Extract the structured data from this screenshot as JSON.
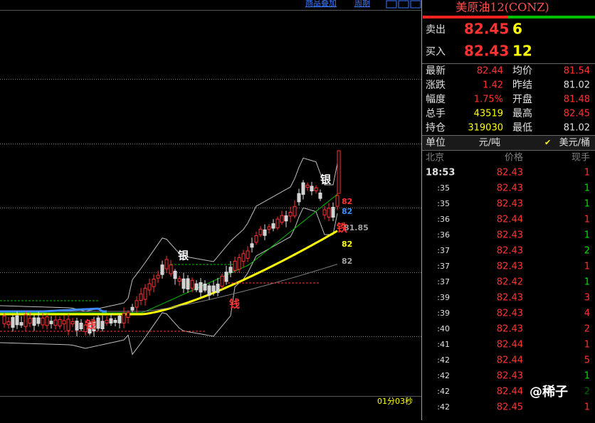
{
  "toolbar": [
    "商品叠加",
    "周期"
  ],
  "chart": {
    "price_labels": [
      {
        "text": "82",
        "color": "#ff3232"
      },
      {
        "text": "82",
        "color": "#3c8cff"
      },
      {
        "text": "81.85",
        "color": "#a0a0a0"
      },
      {
        "text": "82",
        "color": "#ffff00"
      },
      {
        "text": "82",
        "color": "#a0a0a0"
      }
    ],
    "markers": [
      {
        "text": "银",
        "color": "#ffffff"
      },
      {
        "text": "银",
        "color": "#ffffff"
      },
      {
        "text": "铁",
        "color": "#ff3232"
      },
      {
        "text": "钱",
        "color": "#ff3232"
      },
      {
        "text": "钱",
        "color": "#ff3232"
      }
    ],
    "timer": "01分03秒"
  },
  "quote": {
    "title": "美原油12(CONZ)",
    "ask": {
      "label": "卖出",
      "price": "82.45",
      "size": "6"
    },
    "bid": {
      "label": "买入",
      "price": "82.43",
      "size": "12"
    },
    "stats": [
      [
        {
          "t": "最新"
        },
        {
          "t": "82.44",
          "color": "#ff3232"
        },
        {
          "t": "均价"
        },
        {
          "t": "81.54",
          "color": "#ff3232"
        }
      ],
      [
        {
          "t": "涨跌"
        },
        {
          "t": "1.42",
          "color": "#ff3232"
        },
        {
          "t": "昨结"
        },
        {
          "t": "81.02",
          "color": "#e0e0e0"
        }
      ],
      [
        {
          "t": "幅度"
        },
        {
          "t": "1.75%",
          "color": "#ff3232"
        },
        {
          "t": "开盘"
        },
        {
          "t": "81.48",
          "color": "#ff3232"
        }
      ],
      [
        {
          "t": "总手"
        },
        {
          "t": "43519",
          "color": "#ffff00"
        },
        {
          "t": "最高"
        },
        {
          "t": "82.45",
          "color": "#ff3232"
        }
      ],
      [
        {
          "t": "持仓"
        },
        {
          "t": "319030",
          "color": "#ffff00"
        },
        {
          "t": "最低"
        },
        {
          "t": "81.02",
          "color": "#e0e0e0"
        }
      ]
    ],
    "unit": {
      "label": "单位",
      "a": "元/吨",
      "b": "美元/桶"
    },
    "ticks_header": [
      "北京",
      "价格",
      "现手"
    ],
    "ticks": [
      {
        "time": "18:53",
        "price": "82.43",
        "size": "1",
        "color": "#ff3232"
      },
      {
        "time": ":35",
        "price": "82.43",
        "size": "1",
        "color": "#00e000"
      },
      {
        "time": ":35",
        "price": "82.43",
        "size": "1",
        "color": "#00e000"
      },
      {
        "time": ":36",
        "price": "82.44",
        "size": "1",
        "color": "#ff3232"
      },
      {
        "time": ":36",
        "price": "82.43",
        "size": "1",
        "color": "#00e000"
      },
      {
        "time": ":37",
        "price": "82.43",
        "size": "2",
        "color": "#00e000"
      },
      {
        "time": ":37",
        "price": "82.43",
        "size": "1",
        "color": "#ff3232"
      },
      {
        "time": ":37",
        "price": "82.42",
        "size": "1",
        "color": "#00e000"
      },
      {
        "time": ":39",
        "price": "82.43",
        "size": "3",
        "color": "#ff3232"
      },
      {
        "time": ":39",
        "price": "82.43",
        "size": "4",
        "color": "#ff3232"
      },
      {
        "time": ":40",
        "price": "82.43",
        "size": "2",
        "color": "#ff3232"
      },
      {
        "time": ":41",
        "price": "82.44",
        "size": "1",
        "color": "#ff3232"
      },
      {
        "time": ":42",
        "price": "82.44",
        "size": "5",
        "color": "#ff3232"
      },
      {
        "time": ":42",
        "price": "82.43",
        "size": "1",
        "color": "#00e000"
      },
      {
        "time": ":42",
        "price": "82.44",
        "size": "2",
        "color": "#00e000"
      },
      {
        "time": ":42",
        "price": "82.45",
        "size": "1",
        "color": "#ff3232"
      }
    ]
  },
  "watermark": "@稀子"
}
